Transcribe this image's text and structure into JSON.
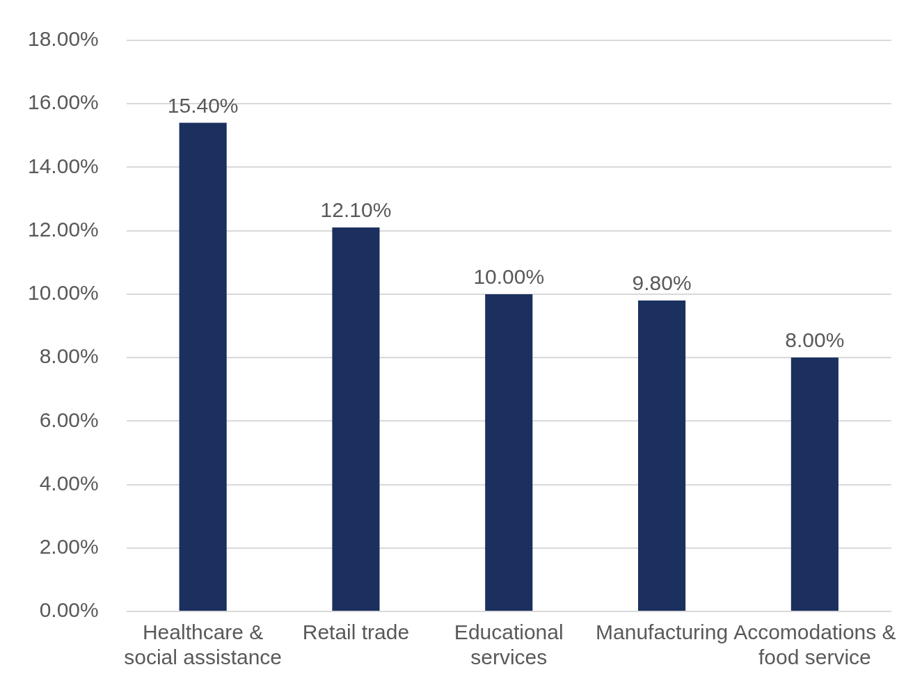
{
  "chart_data": {
    "type": "bar",
    "categories": [
      "Healthcare & social assistance",
      "Retail trade",
      "Educational services",
      "Manufacturing",
      "Accomodations & food service"
    ],
    "values": [
      15.4,
      12.1,
      10.0,
      9.8,
      8.0
    ],
    "value_labels": [
      "15.40%",
      "12.10%",
      "10.00%",
      "9.80%",
      "8.00%"
    ],
    "color": "#1b305f",
    "ylim": [
      0,
      18
    ],
    "yticks": [
      {
        "value": 0,
        "label": "0.00%"
      },
      {
        "value": 2,
        "label": "2.00%"
      },
      {
        "value": 4,
        "label": "4.00%"
      },
      {
        "value": 6,
        "label": "6.00%"
      },
      {
        "value": 8,
        "label": "8.00%"
      },
      {
        "value": 10,
        "label": "10.00%"
      },
      {
        "value": 12,
        "label": "12.00%"
      },
      {
        "value": 14,
        "label": "14.00%"
      },
      {
        "value": 16,
        "label": "16.00%"
      },
      {
        "value": 18,
        "label": "18.00%"
      }
    ],
    "grid": "y"
  }
}
